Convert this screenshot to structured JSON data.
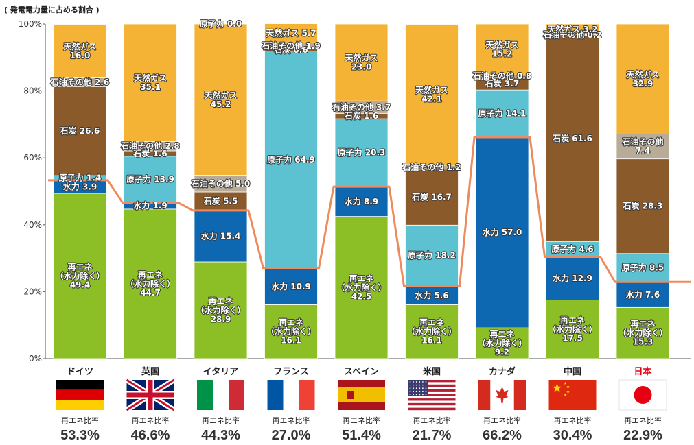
{
  "chart_data": {
    "type": "bar",
    "stacked": true,
    "title": "( 発電電力量に占める割合 )",
    "ylim": [
      0,
      100
    ],
    "yticks": [
      "0%",
      "20%",
      "40%",
      "60%",
      "80%",
      "100%"
    ],
    "renewable_ratio_label": "再エネ比率",
    "colors": {
      "renewable": "#8cbf26",
      "hydro": "#0e68b1",
      "nuclear": "#5cc1d0",
      "coal": "#8b5a2b",
      "oil": "#b8ab97",
      "gas": "#f5b335",
      "line": "#ef8a5d"
    },
    "countries": [
      {
        "name": "ドイツ",
        "highlight": false,
        "ratio": "53.3%",
        "flag": "germany-flag",
        "segments": [
          {
            "type": "renewable",
            "value": 49.4,
            "label": [
              "再エネ",
              "（水力除く）",
              "49.4"
            ]
          },
          {
            "type": "hydro",
            "value": 3.9,
            "label": [
              "水力 3.9"
            ]
          },
          {
            "type": "nuclear",
            "value": 1.4,
            "label": [
              "原子力 1.4"
            ]
          },
          {
            "type": "coal",
            "value": 26.6,
            "label": [
              "石炭 26.6"
            ]
          },
          {
            "type": "oil",
            "value": 2.6,
            "label": [
              "石油その他 2.6"
            ]
          },
          {
            "type": "gas",
            "value": 16.0,
            "label": [
              "天然ガス",
              "16.0"
            ]
          }
        ]
      },
      {
        "name": "英国",
        "highlight": false,
        "ratio": "46.6%",
        "flag": "uk-flag",
        "segments": [
          {
            "type": "renewable",
            "value": 44.7,
            "label": [
              "再エネ",
              "（水力除く）",
              "44.7"
            ]
          },
          {
            "type": "hydro",
            "value": 1.9,
            "label": [
              "水力 1.9"
            ]
          },
          {
            "type": "nuclear",
            "value": 13.9,
            "label": [
              "原子力 13.9"
            ]
          },
          {
            "type": "coal",
            "value": 1.6,
            "label": [
              "石炭 1.6"
            ]
          },
          {
            "type": "oil",
            "value": 2.8,
            "label": [
              "石油その他 2.8"
            ]
          },
          {
            "type": "gas",
            "value": 35.1,
            "label": [
              "天然ガス",
              "35.1"
            ]
          }
        ]
      },
      {
        "name": "イタリア",
        "highlight": false,
        "ratio": "44.3%",
        "flag": "italy-flag",
        "segments": [
          {
            "type": "renewable",
            "value": 28.9,
            "label": [
              "再エネ",
              "（水力除く）",
              "28.9"
            ]
          },
          {
            "type": "hydro",
            "value": 15.4,
            "label": [
              "水力 15.4"
            ]
          },
          {
            "type": "coal",
            "value": 5.5,
            "label": [
              "石炭 5.5"
            ]
          },
          {
            "type": "oil",
            "value": 5.0,
            "label": [
              "石油その他 5.0"
            ]
          },
          {
            "type": "gas",
            "value": 45.2,
            "label": [
              "天然ガス",
              "45.2"
            ]
          },
          {
            "type": "nuclear",
            "value": 0.0,
            "label": [
              "原子力 0.0"
            ]
          }
        ]
      },
      {
        "name": "フランス",
        "highlight": false,
        "ratio": "27.0%",
        "flag": "france-flag",
        "segments": [
          {
            "type": "renewable",
            "value": 16.1,
            "label": [
              "再エネ",
              "（水力除く）",
              "16.1"
            ]
          },
          {
            "type": "hydro",
            "value": 10.9,
            "label": [
              "水力 10.9"
            ]
          },
          {
            "type": "nuclear",
            "value": 64.9,
            "label": [
              "原子力 64.9"
            ]
          },
          {
            "type": "coal",
            "value": 0.6,
            "label": [
              "石炭 0.6"
            ]
          },
          {
            "type": "oil",
            "value": 1.9,
            "label": [
              "石油その他 1.9"
            ]
          },
          {
            "type": "gas",
            "value": 5.7,
            "label": [
              "天然ガス 5.7"
            ]
          }
        ]
      },
      {
        "name": "スペイン",
        "highlight": false,
        "ratio": "51.4%",
        "flag": "spain-flag",
        "segments": [
          {
            "type": "renewable",
            "value": 42.5,
            "label": [
              "再エネ",
              "（水力除く）",
              "42.5"
            ]
          },
          {
            "type": "hydro",
            "value": 8.9,
            "label": [
              "水力 8.9"
            ]
          },
          {
            "type": "nuclear",
            "value": 20.3,
            "label": [
              "原子力 20.3"
            ]
          },
          {
            "type": "coal",
            "value": 1.6,
            "label": [
              "石炭 1.6"
            ]
          },
          {
            "type": "oil",
            "value": 3.7,
            "label": [
              "石油その他 3.7"
            ]
          },
          {
            "type": "gas",
            "value": 23.0,
            "label": [
              "天然ガス",
              "23.0"
            ]
          }
        ]
      },
      {
        "name": "米国",
        "highlight": false,
        "ratio": "21.7%",
        "flag": "usa-flag",
        "segments": [
          {
            "type": "renewable",
            "value": 16.1,
            "label": [
              "再エネ",
              "（水力除く）",
              "16.1"
            ]
          },
          {
            "type": "hydro",
            "value": 5.6,
            "label": [
              "水力 5.6"
            ]
          },
          {
            "type": "nuclear",
            "value": 18.2,
            "label": [
              "原子力 18.2"
            ]
          },
          {
            "type": "coal",
            "value": 16.7,
            "label": [
              "石炭 16.7"
            ]
          },
          {
            "type": "oil",
            "value": 1.2,
            "label": [
              "石油その他 1.2"
            ]
          },
          {
            "type": "gas",
            "value": 42.1,
            "label": [
              "天然ガス",
              "42.1"
            ]
          }
        ]
      },
      {
        "name": "カナダ",
        "highlight": false,
        "ratio": "66.2%",
        "flag": "canada-flag",
        "segments": [
          {
            "type": "renewable",
            "value": 9.2,
            "label": [
              "再エネ",
              "（水力除く）",
              "9.2"
            ]
          },
          {
            "type": "hydro",
            "value": 57.0,
            "label": [
              "水力 57.0"
            ]
          },
          {
            "type": "nuclear",
            "value": 14.1,
            "label": [
              "原子力 14.1"
            ]
          },
          {
            "type": "coal",
            "value": 3.7,
            "label": [
              "石炭 3.7"
            ]
          },
          {
            "type": "oil",
            "value": 0.8,
            "label": [
              "石油その他 0.8"
            ]
          },
          {
            "type": "gas",
            "value": 15.2,
            "label": [
              "天然ガス",
              "15.2"
            ]
          }
        ]
      },
      {
        "name": "中国",
        "highlight": false,
        "ratio": "30.4%",
        "flag": "china-flag",
        "segments": [
          {
            "type": "renewable",
            "value": 17.5,
            "label": [
              "再エネ",
              "（水力除く）",
              "17.5"
            ]
          },
          {
            "type": "hydro",
            "value": 12.9,
            "label": [
              "水力 12.9"
            ]
          },
          {
            "type": "nuclear",
            "value": 4.6,
            "label": [
              "原子力 4.6"
            ]
          },
          {
            "type": "coal",
            "value": 61.6,
            "label": [
              "石炭 61.6"
            ]
          },
          {
            "type": "oil",
            "value": 0.2,
            "label": [
              "石油その他 0.2"
            ]
          },
          {
            "type": "gas",
            "value": 3.2,
            "label": [
              "天然ガス 3.2"
            ]
          }
        ]
      },
      {
        "name": "日本",
        "highlight": true,
        "ratio": "22.9%",
        "flag": "japan-flag",
        "segments": [
          {
            "type": "renewable",
            "value": 15.3,
            "label": [
              "再エネ",
              "（水力除く）",
              "15.3"
            ]
          },
          {
            "type": "hydro",
            "value": 7.6,
            "label": [
              "水力 7.6"
            ]
          },
          {
            "type": "nuclear",
            "value": 8.5,
            "label": [
              "原子力 8.5"
            ]
          },
          {
            "type": "coal",
            "value": 28.3,
            "label": [
              "石炭 28.3"
            ]
          },
          {
            "type": "oil",
            "value": 7.4,
            "label": [
              "石油その他",
              "7.4"
            ]
          },
          {
            "type": "gas",
            "value": 32.9,
            "label": [
              "天然ガス",
              "32.9"
            ]
          }
        ]
      }
    ]
  }
}
